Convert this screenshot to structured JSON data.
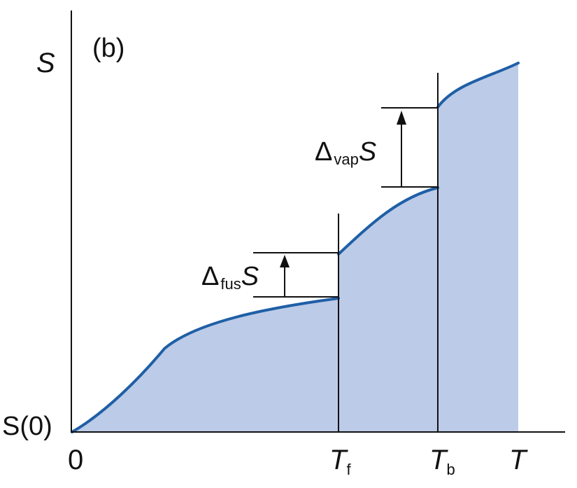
{
  "panel_label": "(b)",
  "y_axis_label": "S",
  "origin_y_label": "S(0)",
  "x_axis_label": "T",
  "x_origin_label": "0",
  "melting_label": {
    "main": "T",
    "sub": "f"
  },
  "boiling_label": {
    "main": "T",
    "sub": "b"
  },
  "fusion_label": {
    "delta": "Δ",
    "sub": "fus",
    "main": "S"
  },
  "vaporization_label": {
    "delta": "Δ",
    "sub": "vap",
    "main": "S"
  },
  "colors": {
    "curve": "#1f5fa6",
    "fill": "#bccbe7",
    "axes": "#111111"
  }
}
